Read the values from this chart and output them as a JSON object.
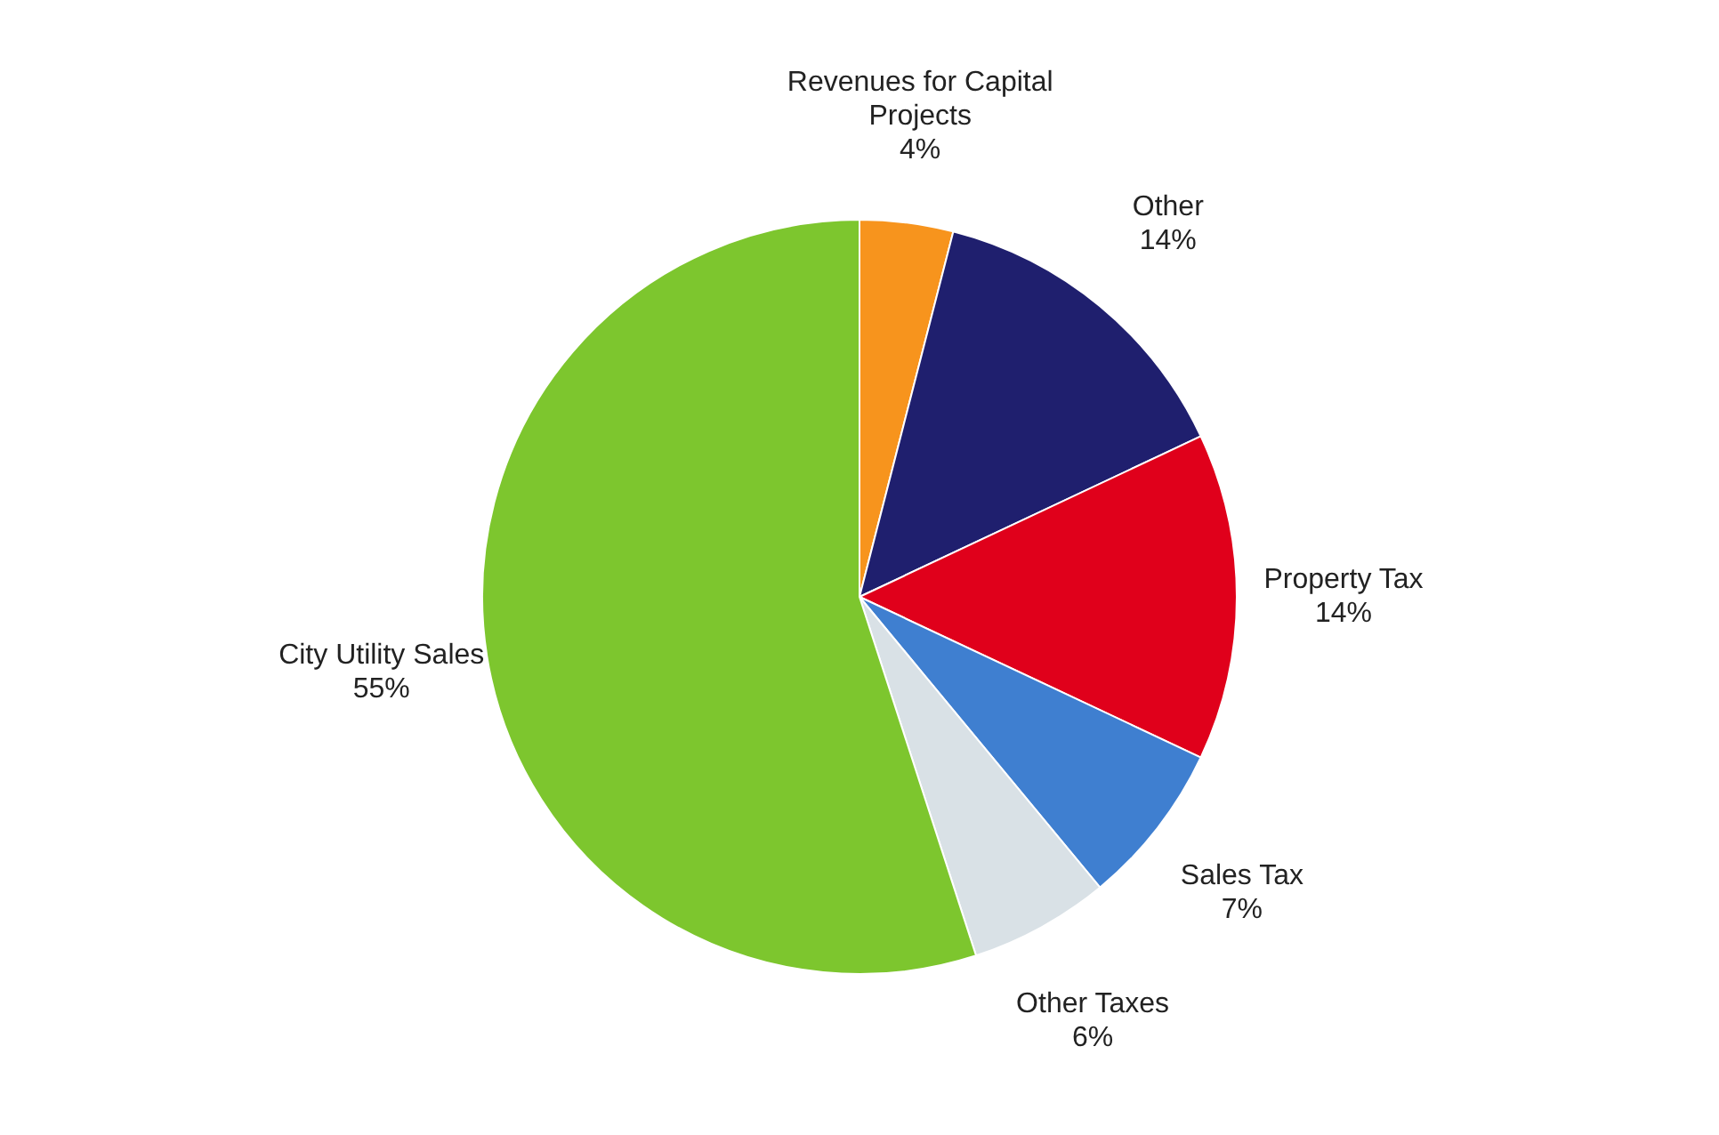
{
  "chart_data": {
    "type": "pie",
    "categories": [
      "Revenues for Capital Projects",
      "Other",
      "Property Tax",
      "Sales Tax",
      "Other Taxes",
      "City Utility Sales"
    ],
    "values": [
      4,
      14,
      14,
      7,
      6,
      55
    ],
    "value_labels": [
      "4%",
      "14%",
      "14%",
      "7%",
      "6%",
      "55%"
    ],
    "colors": [
      "#f7941d",
      "#1f1f6e",
      "#e0001b",
      "#3f7fd0",
      "#d9e1e6",
      "#7dc62e"
    ],
    "legend": false
  }
}
